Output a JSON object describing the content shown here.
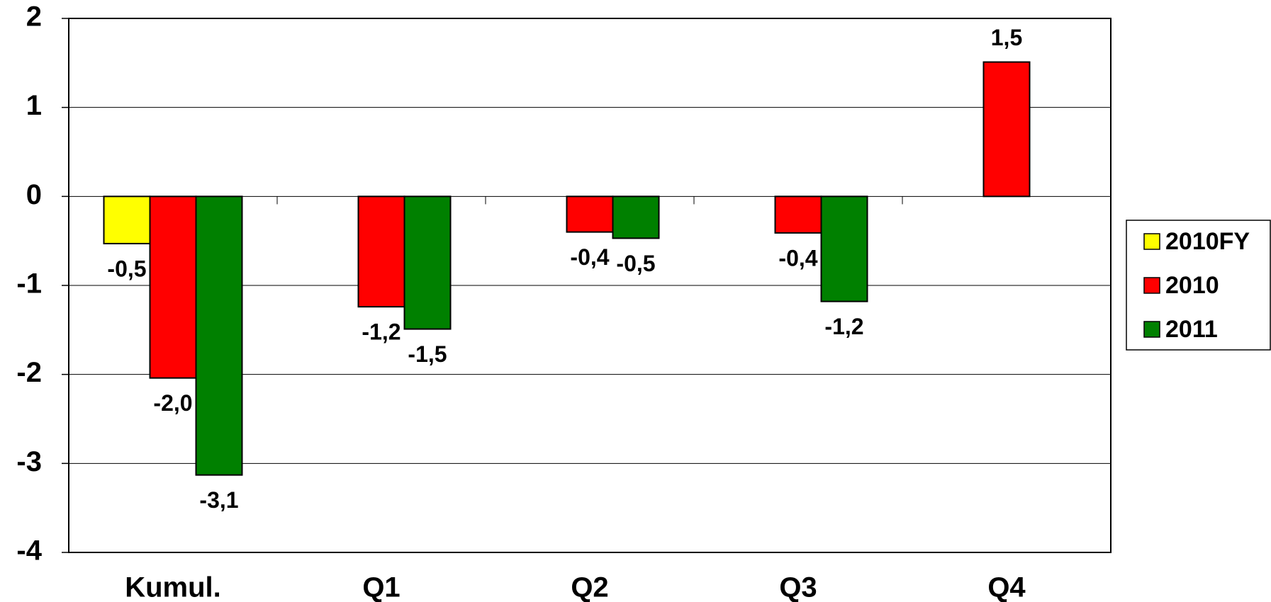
{
  "chart_data": {
    "type": "bar",
    "categories": [
      "Kumul.",
      "Q1",
      "Q2",
      "Q3",
      "Q4"
    ],
    "series": [
      {
        "name": "2010FY",
        "color": "#ffff00",
        "values": [
          -0.53,
          null,
          null,
          null,
          null
        ],
        "value_labels": [
          "-0,5",
          null,
          null,
          null,
          null
        ]
      },
      {
        "name": "2010",
        "color": "#ff0000",
        "values": [
          -2.04,
          -1.24,
          -0.4,
          -0.41,
          1.51
        ],
        "value_labels": [
          "-2,0",
          "-1,2",
          "-0,4",
          "-0,4",
          "1,5"
        ]
      },
      {
        "name": "2011",
        "color": "#008000",
        "values": [
          -3.13,
          -1.49,
          -0.47,
          -1.18,
          null
        ],
        "value_labels": [
          "-3,1",
          "-1,5",
          "-0,5",
          "-1,2",
          null
        ]
      }
    ],
    "ylim": [
      -4,
      2
    ],
    "yticks": [
      -4,
      -3,
      -2,
      -1,
      0,
      1,
      2
    ],
    "grid": true,
    "legend": "right"
  }
}
